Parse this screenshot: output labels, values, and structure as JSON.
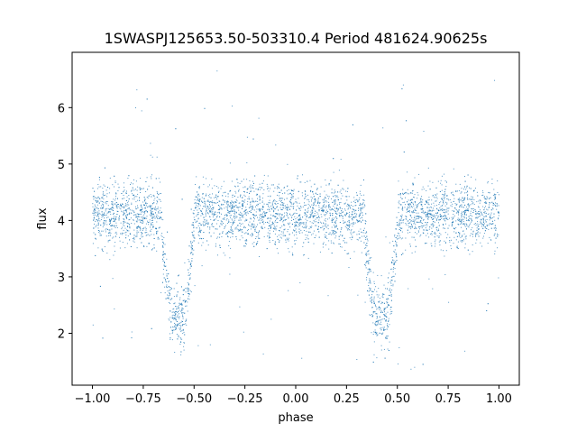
{
  "chart_data": {
    "type": "scatter",
    "title": "1SWASPJ125653.50-503310.4 Period 481624.90625s",
    "xlabel": "phase",
    "ylabel": "flux",
    "xlim": [
      -1.1,
      1.1
    ],
    "ylim": [
      1.08,
      6.98
    ],
    "xticks": [
      -1.0,
      -0.75,
      -0.5,
      -0.25,
      0.0,
      0.25,
      0.5,
      0.75,
      1.0
    ],
    "xtick_labels": [
      "−1.00",
      "−0.75",
      "−0.50",
      "−0.25",
      "0.00",
      "0.25",
      "0.50",
      "0.75",
      "1.00"
    ],
    "yticks": [
      2,
      3,
      4,
      5,
      6
    ],
    "ytick_labels": [
      "2",
      "3",
      "4",
      "5",
      "6"
    ],
    "grid": false,
    "color": "#1f77b4",
    "series": [
      {
        "name": "",
        "phase_range": [
          -1.0,
          1.0
        ],
        "baseline_flux": 4.1,
        "scatter_sd": 0.28,
        "eclipses": [
          {
            "center_phase": -0.58,
            "min_flux": 2.3,
            "ingress_phase": -0.66,
            "egress_phase": -0.49
          },
          {
            "center_phase": 0.42,
            "min_flux": 2.3,
            "ingress_phase": 0.34,
            "egress_phase": 0.51
          }
        ],
        "sample_points": [
          [
            -1.0,
            4.1
          ],
          [
            -0.9,
            4.15
          ],
          [
            -0.8,
            4.05
          ],
          [
            -0.7,
            4.0
          ],
          [
            -0.65,
            3.6
          ],
          [
            -0.62,
            2.9
          ],
          [
            -0.6,
            2.35
          ],
          [
            -0.58,
            2.25
          ],
          [
            -0.55,
            2.4
          ],
          [
            -0.52,
            3.2
          ],
          [
            -0.48,
            3.9
          ],
          [
            -0.4,
            3.95
          ],
          [
            -0.3,
            4.0
          ],
          [
            -0.2,
            4.15
          ],
          [
            -0.1,
            4.2
          ],
          [
            0.0,
            4.15
          ],
          [
            0.1,
            4.1
          ],
          [
            0.2,
            4.05
          ],
          [
            0.3,
            4.0
          ],
          [
            0.35,
            3.6
          ],
          [
            0.38,
            2.9
          ],
          [
            0.4,
            2.35
          ],
          [
            0.42,
            2.25
          ],
          [
            0.45,
            2.4
          ],
          [
            0.48,
            3.2
          ],
          [
            0.52,
            3.9
          ],
          [
            0.6,
            3.95
          ],
          [
            0.7,
            4.0
          ],
          [
            0.8,
            4.15
          ],
          [
            0.9,
            4.2
          ],
          [
            1.0,
            4.15
          ]
        ],
        "outlier_range": [
          1.3,
          6.7
        ]
      }
    ]
  }
}
